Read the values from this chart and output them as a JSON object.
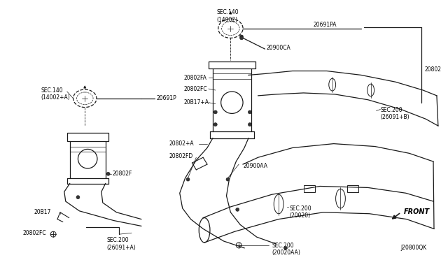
{
  "background_color": "#ffffff",
  "line_color": "#1a1a1a",
  "text_color": "#000000",
  "diagram_id": "J20800QK",
  "labels": {
    "SEC140_left": "SEC.140\n(14002+A)",
    "SEC140_top": "SEC.140\n(14002)",
    "20691P": "20691P",
    "20691PA": "20691PA",
    "20802": "20802",
    "20802FA": "20802FA",
    "20802FC_top": "20802FC",
    "20802FC_bot": "20802FC",
    "20802_plus_A": "20802+A",
    "20802FD": "20802FD",
    "20802F": "20802F",
    "20817_plus_A": "20B17+A",
    "20817": "20B17",
    "20900CA": "20900CA",
    "20900AA": "20900AA",
    "SEC200_26091B": "SEC.200\n(26091+B)",
    "SEC200_26091A": "SEC.200\n(26091+A)",
    "SEC200_20020": "SEC.200\n(20020)",
    "SEC200_20020AA": "SEC.200\n(20020AA)",
    "FRONT": "FRONT"
  }
}
